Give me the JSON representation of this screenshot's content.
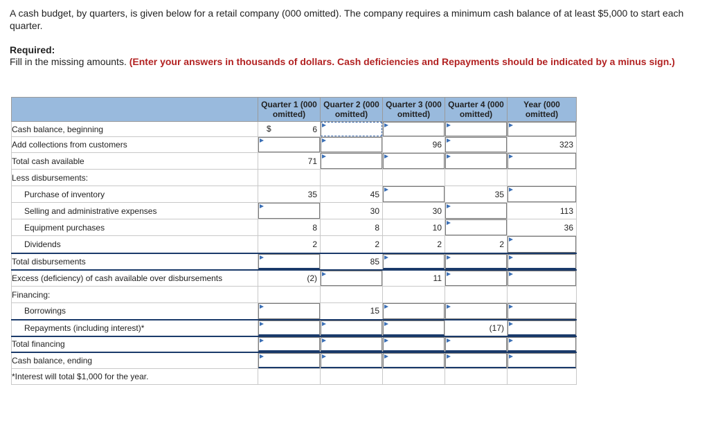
{
  "intro": "A cash budget, by quarters, is given below for a retail company (000 omitted). The company requires a minimum cash balance of at least $5,000 to start each quarter.",
  "required_heading": "Required:",
  "required_text": "Fill in the missing amounts.",
  "required_instruction": "(Enter your answers in thousands of dollars. Cash deficiencies and Repayments should be indicated by a minus sign.)",
  "headers": [
    "Quarter 1 (000 omitted)",
    "Quarter 2 (000 omitted)",
    "Quarter 3 (000 omitted)",
    "Quarter 4 (000 omitted)",
    "Year (000 omitted)"
  ],
  "dollar_sign": "$",
  "rows": [
    {
      "label": "Cash balance, beginning",
      "cells": [
        "6",
        "",
        "",
        "",
        ""
      ]
    },
    {
      "label": "Add collections from customers",
      "cells": [
        "",
        "",
        "96",
        "",
        "323"
      ]
    },
    {
      "label": "Total cash available",
      "cells": [
        "71",
        "",
        "",
        "",
        ""
      ]
    },
    {
      "label": "Less disbursements:",
      "cells": []
    },
    {
      "label": "Purchase of inventory",
      "cells": [
        "35",
        "45",
        "",
        "35",
        ""
      ]
    },
    {
      "label": "Selling and administrative expenses",
      "cells": [
        "",
        "30",
        "30",
        "",
        "113"
      ]
    },
    {
      "label": "Equipment purchases",
      "cells": [
        "8",
        "8",
        "10",
        "",
        "36"
      ]
    },
    {
      "label": "Dividends",
      "cells": [
        "2",
        "2",
        "2",
        "2",
        ""
      ]
    },
    {
      "label": "Total disbursements",
      "cells": [
        "",
        "85",
        "",
        "",
        ""
      ]
    },
    {
      "label": "Excess (deficiency) of cash available over disbursements",
      "cells": [
        "(2)",
        "",
        "11",
        "",
        ""
      ]
    },
    {
      "label": "Financing:",
      "cells": []
    },
    {
      "label": "Borrowings",
      "cells": [
        "",
        "15",
        "",
        "",
        ""
      ]
    },
    {
      "label": "Repayments (including interest)*",
      "cells": [
        "",
        "",
        "",
        "(17)",
        ""
      ]
    },
    {
      "label": "Total financing",
      "cells": [
        "",
        "",
        "",
        "",
        ""
      ]
    },
    {
      "label": "Cash balance, ending",
      "cells": [
        "",
        "",
        "",
        "",
        ""
      ]
    },
    {
      "label": "*Interest will total $1,000 for the year.",
      "cells": []
    }
  ]
}
